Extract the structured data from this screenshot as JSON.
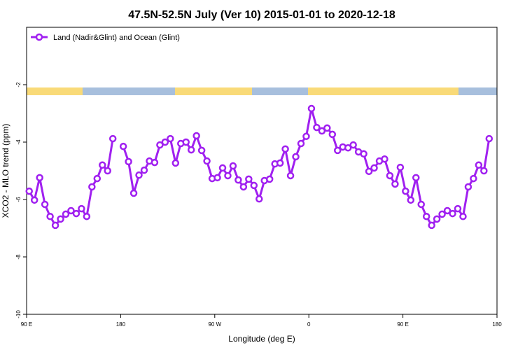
{
  "chart_data": {
    "type": "line",
    "title": "47.5N-52.5N July (Ver 10)   2015-01-01 to 2020-12-18",
    "x_label": "Longitude (deg E)",
    "y_label": "XCO2 - MLO trend (ppm)",
    "xlim": [
      90,
      540
    ],
    "xticks": [
      {
        "value": 90,
        "label": "90 E"
      },
      {
        "value": 180,
        "label": "180"
      },
      {
        "value": 270,
        "label": "90 W"
      },
      {
        "value": 360,
        "label": "0"
      },
      {
        "value": 450,
        "label": "90 E"
      },
      {
        "value": 540,
        "label": "180"
      }
    ],
    "ylim": [
      -10,
      0
    ],
    "yticks": [
      -10,
      -8,
      -6,
      -4,
      -2
    ],
    "legend": "top-left",
    "x": [
      92.5,
      97.5,
      102.5,
      107.5,
      112.5,
      117.5,
      122.5,
      127.5,
      132.5,
      137.5,
      142.5,
      147.5,
      152.5,
      157.5,
      162.5,
      167.5,
      172.5,
      177.5,
      182.5,
      187.5,
      192.5,
      197.5,
      202.5,
      207.5,
      212.5,
      217.5,
      222.5,
      227.5,
      232.5,
      237.5,
      242.5,
      247.5,
      252.5,
      257.5,
      262.5,
      267.5,
      272.5,
      277.5,
      282.5,
      287.5,
      292.5,
      297.5,
      302.5,
      307.5,
      312.5,
      317.5,
      322.5,
      327.5,
      332.5,
      337.5,
      342.5,
      347.5,
      352.5,
      357.5,
      362.5,
      367.5,
      372.5,
      377.5,
      382.5,
      387.5,
      392.5,
      397.5,
      402.5,
      407.5,
      412.5,
      417.5,
      422.5,
      427.5,
      432.5,
      437.5,
      442.5,
      447.5,
      452.5,
      457.5,
      462.5,
      467.5,
      472.5,
      477.5,
      482.5,
      487.5,
      492.5,
      497.5,
      502.5,
      507.5,
      512.5,
      517.5,
      522.5,
      527.5,
      532.5
    ],
    "series": [
      {
        "name": "Land (Nadir&Glint) and Ocean (Glint)",
        "color": "#a020f0",
        "values": [
          -5.71,
          -6.02,
          -5.24,
          -6.17,
          -6.59,
          -6.9,
          -6.68,
          -6.51,
          -6.39,
          -6.49,
          -6.32,
          -6.59,
          -5.56,
          -5.27,
          -4.8,
          -5.0,
          -3.88,
          null,
          -4.15,
          -4.68,
          -5.78,
          -5.15,
          -4.98,
          -4.66,
          -4.71,
          -4.1,
          -4.0,
          -3.88,
          -4.73,
          -4.05,
          -4.0,
          -4.27,
          -3.78,
          -4.29,
          -4.66,
          -5.27,
          -5.24,
          -4.9,
          -5.17,
          -4.83,
          -5.32,
          -5.56,
          -5.29,
          -5.51,
          -5.98,
          -5.34,
          -5.29,
          -4.76,
          -4.73,
          -4.24,
          -5.17,
          -4.51,
          -4.05,
          -3.8,
          -2.83,
          -3.49,
          -3.61,
          -3.51,
          -3.73,
          -4.29,
          -4.17,
          -4.2,
          -4.1,
          -4.34,
          -4.41,
          -5.02,
          -4.9,
          -4.66,
          -4.59,
          -5.17,
          -5.46,
          -4.88,
          -5.71,
          -6.02,
          -5.24,
          -6.17,
          -6.59,
          -6.9,
          -6.68,
          -6.51,
          -6.39,
          -6.49,
          -6.32,
          -6.59,
          -5.56,
          -5.27,
          -4.8,
          -5.0,
          -3.88
        ]
      }
    ]
  }
}
